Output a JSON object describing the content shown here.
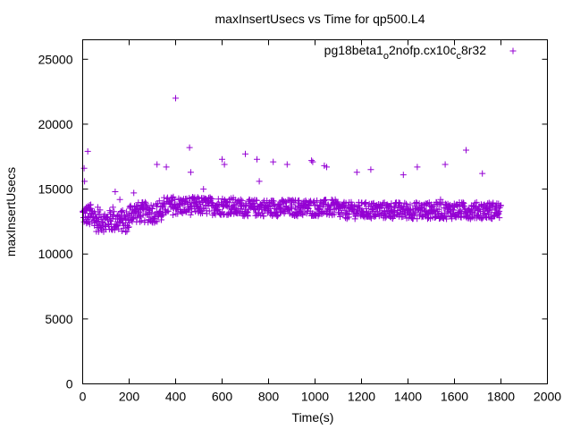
{
  "chart_data": {
    "type": "scatter",
    "title": "maxInsertUsecs vs Time for qp500.L4",
    "xlabel": "Time(s)",
    "ylabel": "maxInsertUsecs",
    "xlim": [
      0,
      2000
    ],
    "ylim": [
      0,
      26500
    ],
    "xticks": [
      "0",
      "200",
      "400",
      "600",
      "800",
      "1000",
      "1200",
      "1400",
      "1600",
      "1800",
      "2000"
    ],
    "yticks": [
      "0",
      "5000",
      "10000",
      "15000",
      "20000",
      "25000"
    ],
    "grid": false,
    "legend_position": "top-right",
    "marker": "+",
    "color": "#9400d3",
    "series": [
      {
        "name": "pg18beta1_o2nofp.cx10c_c8r32",
        "name_parts": {
          "a": "pg18beta1",
          "b": "o",
          "c": "2nofp.cx10c",
          "d": "c",
          "e": "8r32"
        },
        "points": [
          [
            2,
            13300
          ],
          [
            4,
            12800
          ],
          [
            6,
            16600
          ],
          [
            8,
            15600
          ],
          [
            12,
            12900
          ],
          [
            15,
            13400
          ],
          [
            18,
            12400
          ],
          [
            22,
            17900
          ],
          [
            25,
            13600
          ],
          [
            30,
            12300
          ],
          [
            35,
            13800
          ],
          [
            40,
            12500
          ],
          [
            45,
            13100
          ],
          [
            50,
            12600
          ],
          [
            60,
            12200
          ],
          [
            65,
            13600
          ],
          [
            70,
            12300
          ],
          [
            80,
            12000
          ],
          [
            90,
            12900
          ],
          [
            100,
            11900
          ],
          [
            110,
            12300
          ],
          [
            120,
            13200
          ],
          [
            130,
            13600
          ],
          [
            140,
            14800
          ],
          [
            150,
            12700
          ],
          [
            160,
            14200
          ],
          [
            170,
            12600
          ],
          [
            185,
            11700
          ],
          [
            200,
            12400
          ],
          [
            210,
            13100
          ],
          [
            220,
            14700
          ],
          [
            230,
            13300
          ],
          [
            250,
            13400
          ],
          [
            260,
            13000
          ],
          [
            270,
            13700
          ],
          [
            290,
            13200
          ],
          [
            300,
            13500
          ],
          [
            320,
            16900
          ],
          [
            330,
            14100
          ],
          [
            345,
            13700
          ],
          [
            360,
            16700
          ],
          [
            375,
            13900
          ],
          [
            390,
            14400
          ],
          [
            400,
            22000
          ],
          [
            420,
            13800
          ],
          [
            440,
            13400
          ],
          [
            460,
            18200
          ],
          [
            465,
            16300
          ],
          [
            480,
            14000
          ],
          [
            500,
            13500
          ],
          [
            520,
            15000
          ],
          [
            540,
            13700
          ],
          [
            560,
            13900
          ],
          [
            580,
            13300
          ],
          [
            600,
            17300
          ],
          [
            610,
            16900
          ],
          [
            620,
            14000
          ],
          [
            640,
            13500
          ],
          [
            660,
            13800
          ],
          [
            680,
            14200
          ],
          [
            700,
            17700
          ],
          [
            720,
            13700
          ],
          [
            740,
            13900
          ],
          [
            750,
            17300
          ],
          [
            760,
            15600
          ],
          [
            780,
            13600
          ],
          [
            800,
            13500
          ],
          [
            820,
            17100
          ],
          [
            840,
            13800
          ],
          [
            860,
            14000
          ],
          [
            880,
            16900
          ],
          [
            900,
            13500
          ],
          [
            920,
            13200
          ],
          [
            940,
            13600
          ],
          [
            960,
            14100
          ],
          [
            980,
            13300
          ],
          [
            985,
            17200
          ],
          [
            990,
            17100
          ],
          [
            1000,
            13000
          ],
          [
            1020,
            13700
          ],
          [
            1040,
            16800
          ],
          [
            1050,
            16700
          ],
          [
            1060,
            13400
          ],
          [
            1080,
            13900
          ],
          [
            1100,
            13200
          ],
          [
            1120,
            13600
          ],
          [
            1140,
            13100
          ],
          [
            1160,
            13800
          ],
          [
            1180,
            16300
          ],
          [
            1200,
            13300
          ],
          [
            1220,
            13500
          ],
          [
            1240,
            16500
          ],
          [
            1260,
            13000
          ],
          [
            1280,
            13800
          ],
          [
            1300,
            13200
          ],
          [
            1320,
            13700
          ],
          [
            1340,
            13300
          ],
          [
            1360,
            13900
          ],
          [
            1380,
            16100
          ],
          [
            1400,
            13400
          ],
          [
            1420,
            13000
          ],
          [
            1440,
            16700
          ],
          [
            1460,
            13600
          ],
          [
            1480,
            13200
          ],
          [
            1500,
            13800
          ],
          [
            1520,
            13100
          ],
          [
            1540,
            14200
          ],
          [
            1560,
            16900
          ],
          [
            1580,
            13300
          ],
          [
            1600,
            13600
          ],
          [
            1620,
            13100
          ],
          [
            1640,
            13900
          ],
          [
            1650,
            18000
          ],
          [
            1660,
            13400
          ],
          [
            1680,
            13700
          ],
          [
            1700,
            13000
          ],
          [
            1720,
            16200
          ],
          [
            1740,
            13500
          ],
          [
            1760,
            13200
          ],
          [
            1780,
            13600
          ],
          [
            1790,
            13100
          ]
        ]
      }
    ],
    "band": {
      "x_from": 0,
      "x_to": 1800,
      "segments": [
        {
          "x_from": 0,
          "x_to": 50,
          "low": 12200,
          "high": 13800
        },
        {
          "x_from": 50,
          "x_to": 200,
          "low": 11700,
          "high": 13400
        },
        {
          "x_from": 200,
          "x_to": 350,
          "low": 12400,
          "high": 14000
        },
        {
          "x_from": 350,
          "x_to": 650,
          "low": 13000,
          "high": 14400
        },
        {
          "x_from": 650,
          "x_to": 1100,
          "low": 12900,
          "high": 14200
        },
        {
          "x_from": 1100,
          "x_to": 1800,
          "low": 12700,
          "high": 14000
        }
      ]
    }
  }
}
